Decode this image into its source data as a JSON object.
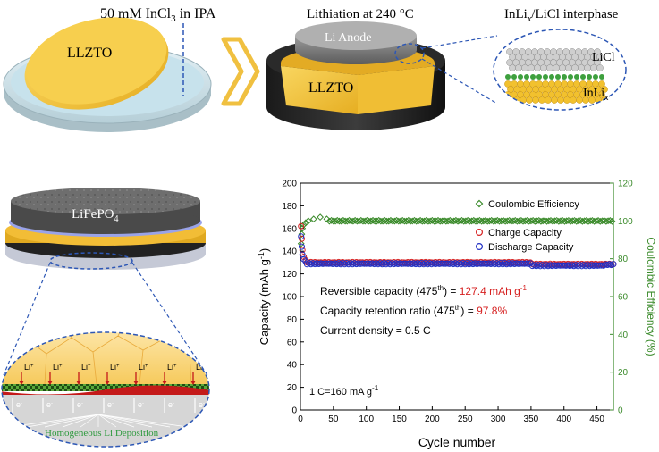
{
  "colors": {
    "gold": "#f5c43c",
    "gold_dark": "#d9a21c",
    "blue_dashed": "#2d57b5",
    "green": "#3a8a2a",
    "red": "#d62020",
    "charge": "#d62020",
    "discharge": "#2231c4",
    "gray_disk": "#5a5a5a",
    "dish": "#cfe6ee"
  },
  "step1": {
    "title": "50 mM InCl",
    "title_sub": "3",
    "title_tail": " in IPA",
    "disk_label": "LLZTO"
  },
  "step2": {
    "title": "Lithiation at 240 °C",
    "anode_label": "Li Anode",
    "ceramic_label": "LLZTO"
  },
  "step3": {
    "title_a": "InLi",
    "title_x": "x",
    "title_b": "/LiCl interphase",
    "licl_label": "LiCl",
    "inli_label": "InLi",
    "inli_x": "x"
  },
  "cell": {
    "cathode_label": "LiFePO",
    "cathode_sub": "4"
  },
  "zoom": {
    "li_label": "Li",
    "li_sup": "+",
    "e_label": "e",
    "e_sup": "-",
    "caption": "Homogeneous Li Deposition"
  },
  "chart_data": {
    "type": "scatter",
    "xlabel": "Cycle number",
    "ylabel_left": "Capacity (mAh g",
    "ylabel_left_sup": "-1",
    "ylabel_left_tail": ")",
    "ylabel_right": "Coulombic Efficiency (%)",
    "xlim": [
      0,
      475
    ],
    "ylim_left": [
      0,
      200
    ],
    "ylim_right": [
      0,
      120
    ],
    "x_ticks": [
      0,
      50,
      100,
      150,
      200,
      250,
      300,
      350,
      400,
      450
    ],
    "y_ticks_left": [
      0,
      20,
      40,
      60,
      80,
      100,
      120,
      140,
      160,
      180,
      200
    ],
    "y_ticks_right": [
      0,
      20,
      40,
      60,
      80,
      100,
      120
    ],
    "legend": [
      {
        "name": "Coulombic Efficiency",
        "marker": "diamond",
        "color": "#3a8a2a"
      },
      {
        "name": "Charge Capacity",
        "marker": "circle",
        "color": "#d62020"
      },
      {
        "name": "Discharge Capacity",
        "marker": "circle",
        "color": "#2231c4"
      }
    ],
    "series": [
      {
        "name": "Coulombic Efficiency",
        "axis": "right",
        "initial": [
          [
            1,
            88
          ],
          [
            2,
            93
          ],
          [
            3,
            96
          ],
          [
            5,
            98
          ],
          [
            8,
            99
          ],
          [
            12,
            100
          ],
          [
            20,
            101
          ],
          [
            30,
            102
          ],
          [
            40,
            101
          ]
        ],
        "steady": 100
      },
      {
        "name": "Charge Capacity",
        "axis": "left",
        "initial": [
          [
            1,
            162
          ],
          [
            2,
            151
          ],
          [
            3,
            141
          ],
          [
            5,
            135
          ],
          [
            8,
            132
          ]
        ],
        "steady": 130
      },
      {
        "name": "Discharge Capacity",
        "axis": "left",
        "initial": [
          [
            1,
            153
          ],
          [
            2,
            144
          ],
          [
            3,
            137
          ],
          [
            5,
            133
          ],
          [
            8,
            131
          ]
        ],
        "steady": 129,
        "end": 127.4
      }
    ],
    "annotations": {
      "line1_text": "Reversible capacity (475",
      "line1_sup": "th",
      "line1_mid": ") = ",
      "line1_value": "127.4 mAh g",
      "line1_value_sup": "-1",
      "line2_text": "Capacity retention ratio (475",
      "line2_sup": "th",
      "line2_mid": ") = ",
      "line2_value": "97.8%",
      "line3_text": "Current density = 0.5 C",
      "line4_text": "1 C=160 mA g",
      "line4_sup": "-1"
    }
  }
}
